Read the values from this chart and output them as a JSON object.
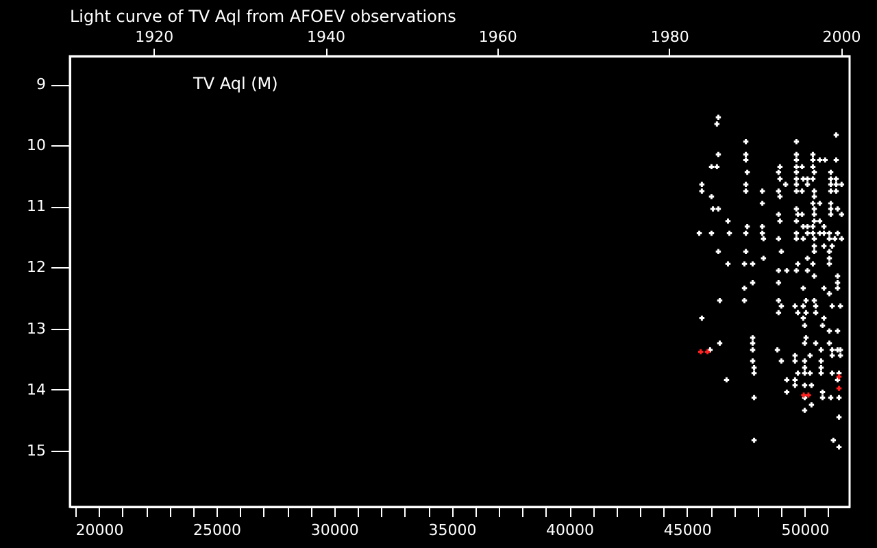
{
  "chart_data": {
    "type": "scatter",
    "title": "Light curve of TV Aql from AFOEV observations",
    "annotations": [
      "TV Aql (M)"
    ],
    "xlim": [
      18765,
      51910
    ],
    "ylim": [
      15.92,
      8.54
    ],
    "xticks": [
      {
        "value": 19000,
        "label": null
      },
      20000,
      {
        "value": 21000,
        "label": null
      },
      {
        "value": 22000,
        "label": null
      },
      {
        "value": 23000,
        "label": null
      },
      {
        "value": 24000,
        "label": null
      },
      25000,
      {
        "value": 26000,
        "label": null
      },
      {
        "value": 27000,
        "label": null
      },
      {
        "value": 28000,
        "label": null
      },
      {
        "value": 29000,
        "label": null
      },
      30000,
      {
        "value": 31000,
        "label": null
      },
      {
        "value": 32000,
        "label": null
      },
      {
        "value": 33000,
        "label": null
      },
      {
        "value": 34000,
        "label": null
      },
      35000,
      {
        "value": 36000,
        "label": null
      },
      {
        "value": 37000,
        "label": null
      },
      {
        "value": 38000,
        "label": null
      },
      {
        "value": 39000,
        "label": null
      },
      40000,
      {
        "value": 41000,
        "label": null
      },
      {
        "value": 42000,
        "label": null
      },
      {
        "value": 43000,
        "label": null
      },
      {
        "value": 44000,
        "label": null
      },
      45000,
      {
        "value": 46000,
        "label": null
      },
      {
        "value": 47000,
        "label": null
      },
      {
        "value": 48000,
        "label": null
      },
      {
        "value": 49000,
        "label": null
      },
      50000,
      {
        "value": 51000,
        "label": null
      }
    ],
    "x2lim": [
      1910.25,
      2001.0
    ],
    "x2ticks": [
      1920,
      1940,
      1960,
      1980,
      2000
    ],
    "yticks": [
      9,
      10,
      11,
      12,
      13,
      14,
      15
    ],
    "marker": "cross",
    "grid": false,
    "series": [
      {
        "color": "#ffffff",
        "x": [
          46330,
          46270,
          51340,
          47500,
          49650,
          46330,
          47500,
          49650,
          50350,
          47500,
          49650,
          50350,
          50640,
          50870,
          51340,
          46040,
          46270,
          48950,
          49650,
          49890,
          50350,
          47560,
          48890,
          49650,
          50410,
          51110,
          48950,
          49650,
          49940,
          50120,
          50350,
          51110,
          51340,
          45630,
          47500,
          49190,
          49650,
          50120,
          51110,
          51340,
          51570,
          45630,
          47500,
          48200,
          48890,
          49650,
          49890,
          50410,
          51110,
          51340,
          46040,
          48950,
          50410,
          48200,
          50350,
          50640,
          51110,
          46100,
          46330,
          49650,
          50410,
          51110,
          51400,
          48890,
          49710,
          49890,
          50410,
          51110,
          51570,
          46740,
          48950,
          49650,
          50410,
          50640,
          47560,
          48200,
          49940,
          50120,
          50350,
          50820,
          45520,
          46040,
          46800,
          47500,
          48200,
          49650,
          50120,
          50350,
          50640,
          50820,
          51050,
          51400,
          48250,
          48890,
          49650,
          49940,
          50410,
          51050,
          51280,
          51570,
          50410,
          50820,
          51170,
          46330,
          47500,
          49010,
          50410,
          51050,
          48250,
          50120,
          51050,
          46740,
          47440,
          47790,
          49710,
          50350,
          51050,
          48890,
          49240,
          49650,
          50120,
          50410,
          51400,
          47790,
          48890,
          51400,
          47440,
          49940,
          50820,
          51400,
          51050,
          46390,
          47440,
          48890,
          50060,
          50410,
          49010,
          49590,
          49940,
          50470,
          51170,
          51520,
          48890,
          49710,
          50060,
          50470,
          45630,
          49940,
          50820,
          50000,
          50760,
          51050,
          51400,
          47790,
          50060,
          46390,
          47790,
          50000,
          50470,
          51050,
          45980,
          47790,
          48840,
          50700,
          51170,
          51400,
          51520,
          49590,
          50230,
          51170,
          51520,
          47790,
          49010,
          49590,
          50000,
          50700,
          47850,
          50000,
          50700,
          47850,
          49710,
          50000,
          50230,
          50700,
          51170,
          51460,
          46680,
          49240,
          49590,
          51400,
          49590,
          50000,
          50290,
          49240,
          50760,
          47850,
          50000,
          50760,
          51110,
          51460,
          50290,
          50000,
          51460,
          47850,
          51220,
          51460
        ],
        "values": [
          9.54,
          9.65,
          9.83,
          9.94,
          9.94,
          10.15,
          10.15,
          10.15,
          10.15,
          10.24,
          10.24,
          10.24,
          10.24,
          10.24,
          10.24,
          10.35,
          10.35,
          10.35,
          10.35,
          10.35,
          10.35,
          10.44,
          10.44,
          10.44,
          10.44,
          10.44,
          10.55,
          10.55,
          10.55,
          10.55,
          10.55,
          10.55,
          10.55,
          10.64,
          10.64,
          10.64,
          10.64,
          10.64,
          10.64,
          10.64,
          10.64,
          10.75,
          10.75,
          10.75,
          10.75,
          10.75,
          10.75,
          10.75,
          10.75,
          10.75,
          10.84,
          10.84,
          10.84,
          10.95,
          10.95,
          10.95,
          10.95,
          11.04,
          11.04,
          11.04,
          11.04,
          11.04,
          11.04,
          11.13,
          11.13,
          11.13,
          11.13,
          11.13,
          11.13,
          11.24,
          11.24,
          11.24,
          11.24,
          11.24,
          11.33,
          11.33,
          11.33,
          11.33,
          11.33,
          11.33,
          11.44,
          11.44,
          11.44,
          11.44,
          11.44,
          11.44,
          11.44,
          11.44,
          11.44,
          11.44,
          11.44,
          11.44,
          11.53,
          11.53,
          11.53,
          11.53,
          11.53,
          11.53,
          11.53,
          11.53,
          11.65,
          11.65,
          11.65,
          11.74,
          11.74,
          11.74,
          11.74,
          11.74,
          11.85,
          11.85,
          11.85,
          11.94,
          11.94,
          11.94,
          11.94,
          11.94,
          11.94,
          12.05,
          12.05,
          12.05,
          12.05,
          12.14,
          12.14,
          12.25,
          12.25,
          12.25,
          12.34,
          12.34,
          12.34,
          12.34,
          12.43,
          12.54,
          12.54,
          12.54,
          12.54,
          12.54,
          12.63,
          12.63,
          12.63,
          12.63,
          12.63,
          12.63,
          12.74,
          12.74,
          12.74,
          12.74,
          12.83,
          12.83,
          12.83,
          12.95,
          12.95,
          13.04,
          13.04,
          13.15,
          13.15,
          13.24,
          13.24,
          13.24,
          13.24,
          13.24,
          13.35,
          13.35,
          13.35,
          13.35,
          13.35,
          13.35,
          13.35,
          13.44,
          13.44,
          13.44,
          13.44,
          13.53,
          13.53,
          13.53,
          13.53,
          13.53,
          13.64,
          13.64,
          13.64,
          13.73,
          13.73,
          13.73,
          13.73,
          13.73,
          13.73,
          13.73,
          13.84,
          13.84,
          13.84,
          13.84,
          13.93,
          13.93,
          13.93,
          14.04,
          14.04,
          14.13,
          14.13,
          14.13,
          14.13,
          14.13,
          14.25,
          14.34,
          14.45,
          14.83,
          14.83,
          14.94
        ]
      },
      {
        "color": "#ff2020",
        "x": [
          45580,
          45870,
          49960,
          50160,
          51460,
          51460
        ],
        "values": [
          13.38,
          13.38,
          14.09,
          14.09,
          13.79,
          13.98
        ]
      }
    ]
  }
}
